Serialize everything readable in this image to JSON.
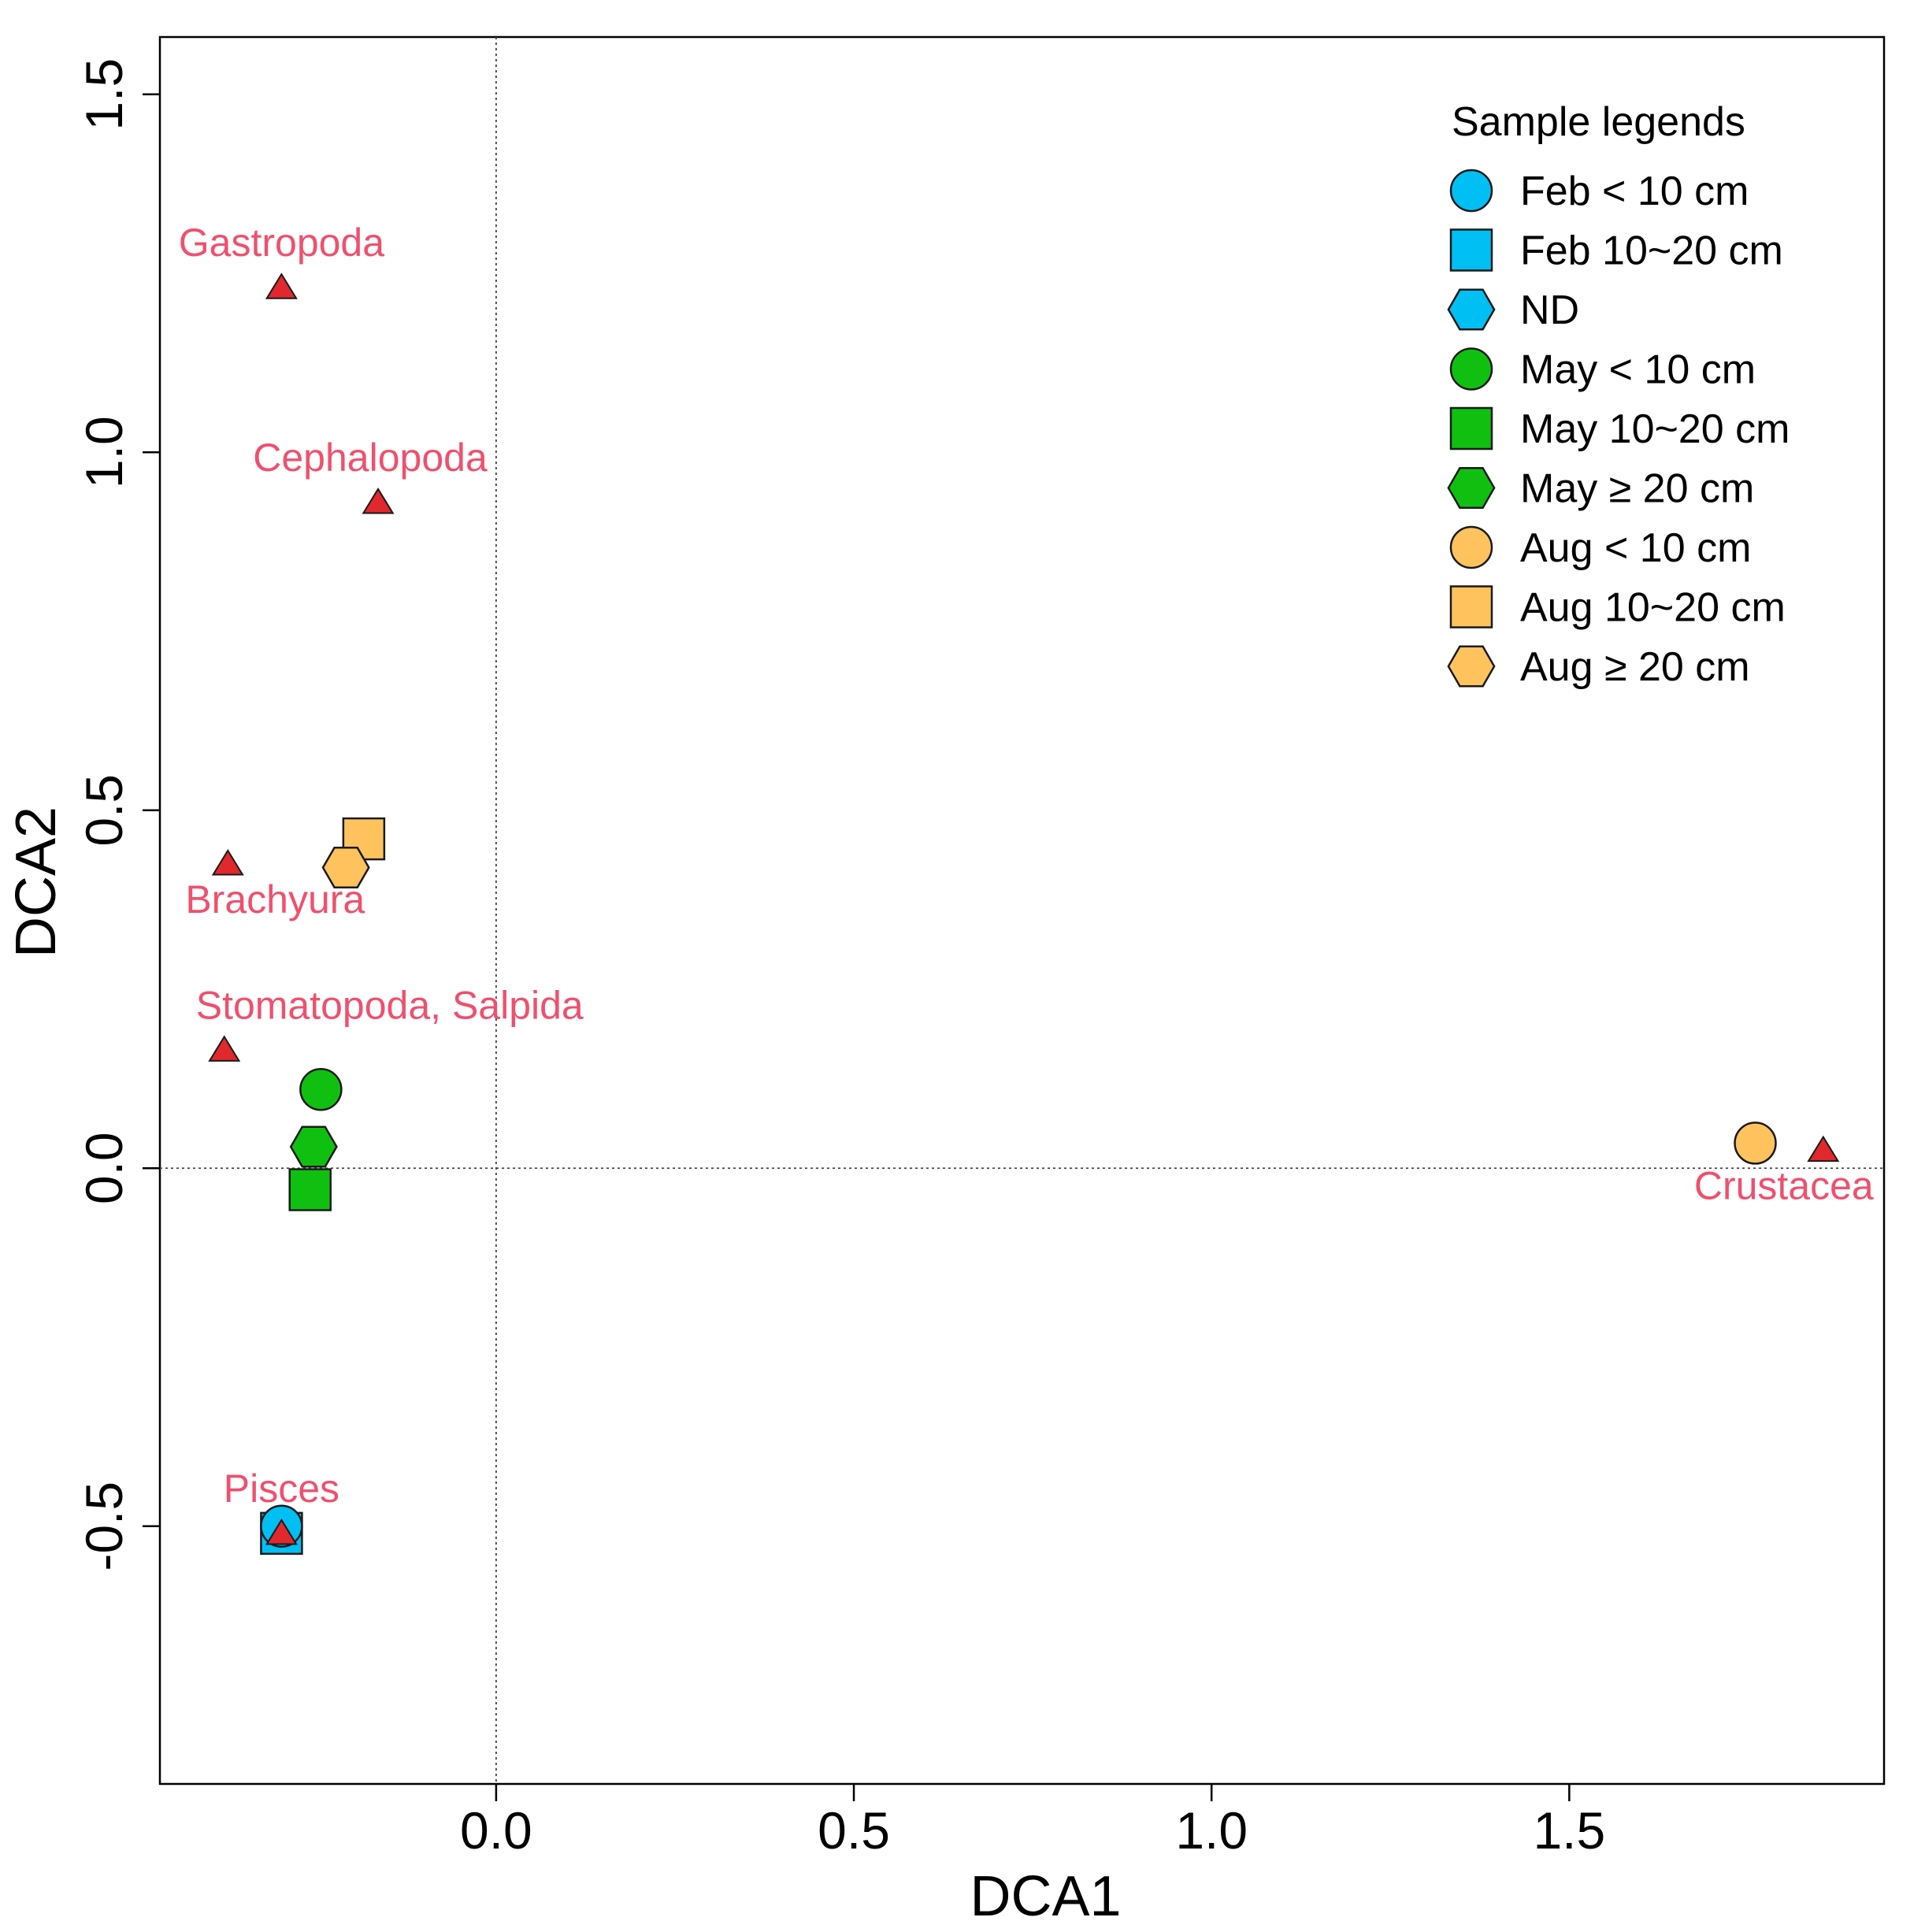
{
  "chart_data": {
    "type": "scatter",
    "title": "",
    "xlabel": "DCA1",
    "ylabel": "DCA2",
    "xlim": [
      -0.47,
      1.94
    ],
    "ylim": [
      -0.86,
      1.58
    ],
    "xticks": [
      0.0,
      0.5,
      1.0,
      1.5
    ],
    "xtick_labels": [
      "0.0",
      "0.5",
      "1.0",
      "1.5"
    ],
    "yticks": [
      -0.5,
      0.0,
      0.5,
      1.0,
      1.5
    ],
    "ytick_labels": [
      "-0.5",
      "0.0",
      "0.5",
      "1.0",
      "1.5"
    ],
    "reference_lines": {
      "x": 0.0,
      "y": 0.0
    },
    "legend": {
      "title": "Sample legends",
      "position": "top-right",
      "entries": [
        {
          "label": "Feb < 10 cm",
          "shape": "circle",
          "color": "#00BFF3"
        },
        {
          "label": "Feb 10~20 cm",
          "shape": "square",
          "color": "#00BFF3"
        },
        {
          "label": "ND",
          "shape": "hexagon",
          "color": "#00BFF3"
        },
        {
          "label": "May < 10 cm",
          "shape": "circle",
          "color": "#10C010"
        },
        {
          "label": "May 10~20 cm",
          "shape": "square",
          "color": "#10C010"
        },
        {
          "label": "May ≥ 20 cm",
          "shape": "hexagon",
          "color": "#10C010"
        },
        {
          "label": "Aug < 10 cm",
          "shape": "circle",
          "color": "#FFC35E"
        },
        {
          "label": "Aug 10~20 cm",
          "shape": "square",
          "color": "#FFC35E"
        },
        {
          "label": "Aug ≥ 20 cm",
          "shape": "hexagon",
          "color": "#FFC35E"
        }
      ]
    },
    "samples": [
      {
        "label": "Feb 10~20 cm",
        "shape": "square",
        "color": "#00BFF3",
        "x": -0.3,
        "y": -0.51
      },
      {
        "label": "Feb < 10 cm",
        "shape": "circle",
        "color": "#00BFF3",
        "x": -0.3,
        "y": -0.5
      },
      {
        "label": "May < 10 cm",
        "shape": "circle",
        "color": "#10C010",
        "x": -0.245,
        "y": 0.11
      },
      {
        "label": "May ≥ 20 cm",
        "shape": "hexagon",
        "color": "#10C010",
        "x": -0.255,
        "y": 0.03
      },
      {
        "label": "May 10~20 cm",
        "shape": "square",
        "color": "#10C010",
        "x": -0.26,
        "y": -0.03
      },
      {
        "label": "Aug 10~20 cm",
        "shape": "square",
        "color": "#FFC35E",
        "x": -0.185,
        "y": 0.46
      },
      {
        "label": "Aug ≥ 20 cm",
        "shape": "hexagon",
        "color": "#FFC35E",
        "x": -0.21,
        "y": 0.42
      },
      {
        "label": "Aug < 10 cm",
        "shape": "circle",
        "color": "#FFC35E",
        "x": 1.76,
        "y": 0.035
      }
    ],
    "taxa": [
      {
        "name": "Gastropoda",
        "x": -0.3,
        "y": 1.23,
        "label_pos": "above"
      },
      {
        "name": "Cephalopoda",
        "x": -0.165,
        "y": 0.93,
        "label_pos": "above"
      },
      {
        "name": "Brachyura",
        "x": -0.375,
        "y": 0.425,
        "label_pos": "below"
      },
      {
        "name": "Stomatopoda, Salpida",
        "x": -0.38,
        "y": 0.165,
        "label_pos": "above"
      },
      {
        "name": "Crustacea",
        "x": 1.855,
        "y": 0.025,
        "label_pos": "below"
      },
      {
        "name": "Pisces",
        "x": -0.3,
        "y": -0.51,
        "label_pos": "above"
      }
    ],
    "taxa_marker": {
      "shape": "triangle",
      "color": "#E0282D"
    },
    "taxa_label_color": "#F0506E"
  }
}
